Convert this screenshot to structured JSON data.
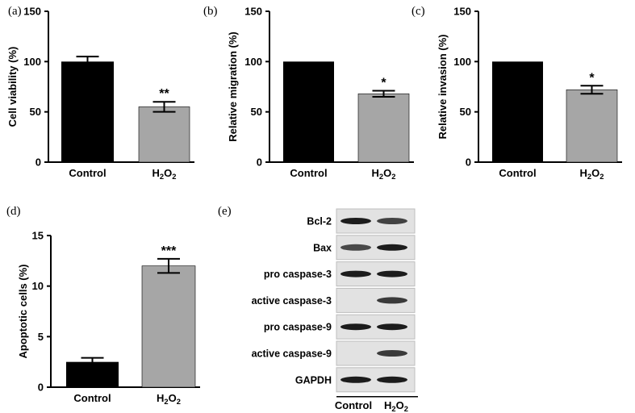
{
  "colors": {
    "control": "#000000",
    "treated": "#a6a6a6",
    "axis": "#000000",
    "blot_background": "#e2e2e2",
    "band": "#1c1c1c"
  },
  "chart_data": [
    {
      "type": "bar",
      "panel": "(a)",
      "categories": [
        "Control",
        "H2O2"
      ],
      "values": [
        100,
        55
      ],
      "errors": [
        5,
        5
      ],
      "significance": [
        "",
        "**"
      ],
      "ylabel": "Cell viability (%)",
      "ylim": [
        0,
        150
      ],
      "yticks": [
        0,
        50,
        100,
        150
      ]
    },
    {
      "type": "bar",
      "panel": "(b)",
      "categories": [
        "Control",
        "H2O2"
      ],
      "values": [
        100,
        68
      ],
      "errors": [
        0,
        3
      ],
      "significance": [
        "",
        "*"
      ],
      "ylabel": "Relative migration (%)",
      "ylim": [
        0,
        150
      ],
      "yticks": [
        0,
        50,
        100,
        150
      ]
    },
    {
      "type": "bar",
      "panel": "(c)",
      "categories": [
        "Control",
        "H2O2"
      ],
      "values": [
        100,
        72
      ],
      "errors": [
        0,
        4
      ],
      "significance": [
        "",
        "*"
      ],
      "ylabel": "Relative invasion (%)",
      "ylim": [
        0,
        150
      ],
      "yticks": [
        0,
        50,
        100,
        150
      ]
    },
    {
      "type": "bar",
      "panel": "(d)",
      "categories": [
        "Control",
        "H2O2"
      ],
      "values": [
        2.5,
        12
      ],
      "errors": [
        0.4,
        0.7
      ],
      "significance": [
        "",
        "***"
      ],
      "ylabel": "Apoptotic cells (%)",
      "ylim": [
        0,
        15
      ],
      "yticks": [
        0,
        5,
        10,
        15
      ]
    }
  ],
  "blot": {
    "panel": "(e)",
    "lanes": [
      "Control",
      "H2O2"
    ],
    "rows": [
      {
        "label": "Bcl-2",
        "intensity": [
          1.0,
          0.75
        ]
      },
      {
        "label": "Bax",
        "intensity": [
          0.7,
          1.0
        ]
      },
      {
        "label": "pro caspase-3",
        "intensity": [
          1.0,
          1.0
        ]
      },
      {
        "label": "active caspase-3",
        "intensity": [
          0.0,
          0.8
        ]
      },
      {
        "label": "pro caspase-9",
        "intensity": [
          1.0,
          1.0
        ]
      },
      {
        "label": "active caspase-9",
        "intensity": [
          0.0,
          0.8
        ]
      },
      {
        "label": "GAPDH",
        "intensity": [
          1.0,
          1.0
        ]
      }
    ]
  }
}
